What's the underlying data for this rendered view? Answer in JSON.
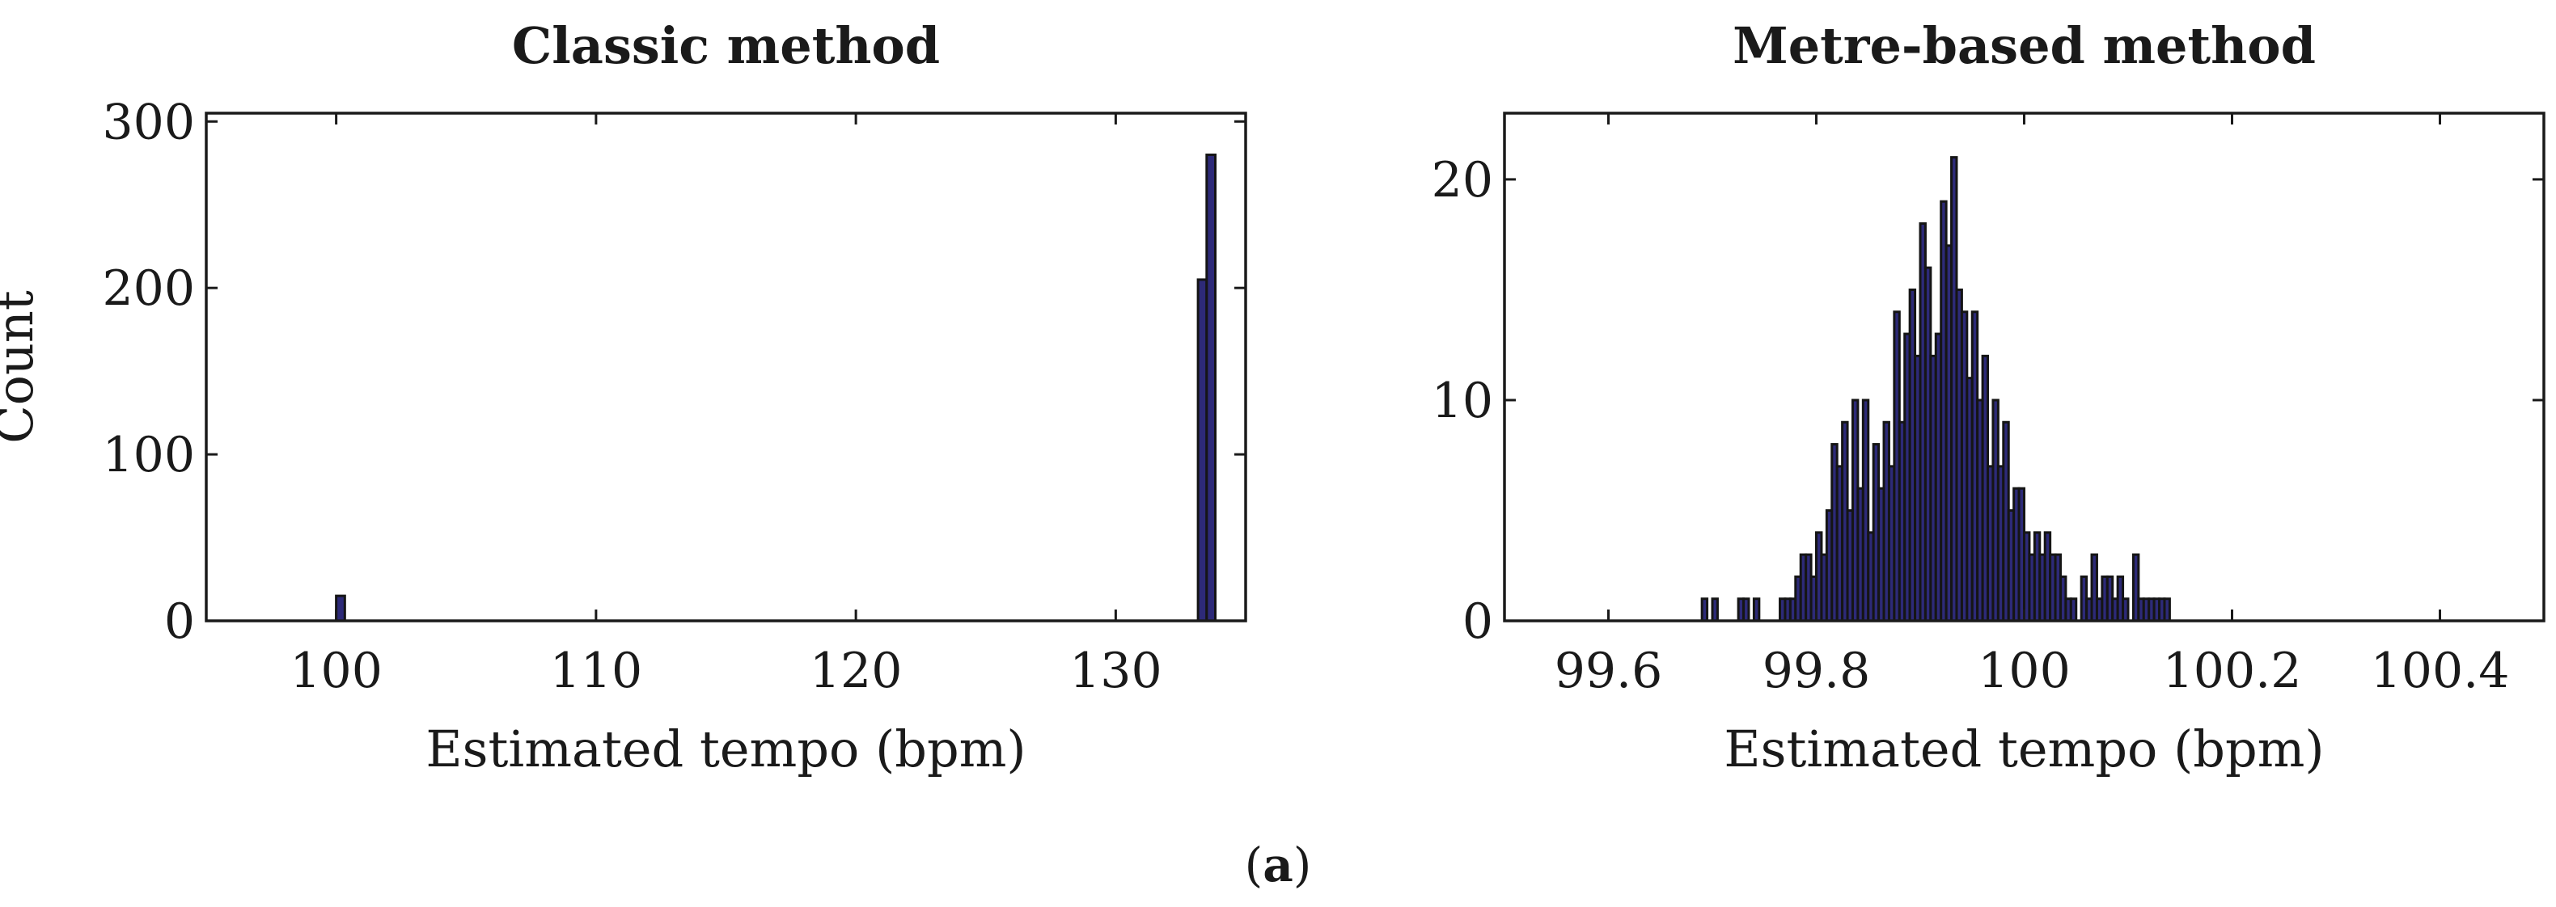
{
  "caption": {
    "open": "(",
    "letter": "a",
    "close": ")"
  },
  "colors": {
    "bar_fill": "#2d2a78",
    "bar_edge": "#151515",
    "axis": "#1a1a1a"
  },
  "chart_data": [
    {
      "type": "bar",
      "title": "Classic method",
      "xlabel": "Estimated tempo (bpm)",
      "ylabel": "Count",
      "xlim": [
        95,
        135
      ],
      "ylim": [
        0,
        305
      ],
      "xticks": [
        100,
        110,
        120,
        130
      ],
      "yticks": [
        0,
        100,
        200,
        300
      ],
      "bin_width": 0.333,
      "bins": [
        {
          "x": 100.0,
          "count": 15
        },
        {
          "x": 133.167,
          "count": 205
        },
        {
          "x": 133.5,
          "count": 280
        }
      ]
    },
    {
      "type": "bar",
      "title": "Metre-based method",
      "xlabel": "Estimated tempo (bpm)",
      "ylabel": "",
      "xlim": [
        99.5,
        100.5
      ],
      "ylim": [
        0,
        23
      ],
      "xticks": [
        99.6,
        99.8,
        100,
        100.2,
        100.4
      ],
      "xtick_labels": [
        "99.6",
        "99.8",
        "100",
        "100.2",
        "100.4"
      ],
      "yticks": [
        0,
        10,
        20
      ],
      "bin_start": 99.69,
      "bin_width": 0.005,
      "counts": [
        1,
        0,
        1,
        0,
        0,
        0,
        0,
        1,
        1,
        0,
        1,
        0,
        0,
        0,
        0,
        1,
        1,
        1,
        2,
        3,
        3,
        2,
        4,
        3,
        5,
        8,
        7,
        9,
        5,
        10,
        6,
        10,
        4,
        8,
        6,
        9,
        7,
        14,
        9,
        13,
        15,
        12,
        18,
        16,
        12,
        13,
        19,
        17,
        21,
        15,
        14,
        11,
        14,
        10,
        12,
        7,
        10,
        7,
        9,
        5,
        6,
        6,
        4,
        3,
        4,
        3,
        4,
        3,
        3,
        2,
        1,
        1,
        0,
        2,
        1,
        3,
        1,
        2,
        2,
        1,
        2,
        1,
        0,
        3,
        1,
        1,
        1,
        1,
        1,
        1
      ]
    }
  ]
}
